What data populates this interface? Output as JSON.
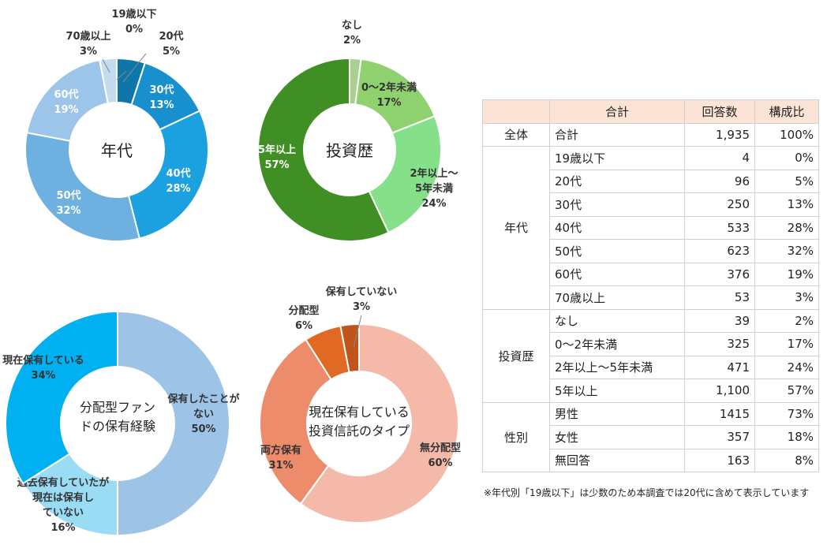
{
  "chart_data": [
    {
      "type": "pie",
      "title": "年代",
      "slices": [
        {
          "label": "19歳以下",
          "value": 0,
          "value_label": "0%",
          "color": "#0b5b86"
        },
        {
          "label": "20代",
          "value": 5,
          "value_label": "5%",
          "color": "#0e76a8"
        },
        {
          "label": "30代",
          "value": 13,
          "value_label": "13%",
          "color": "#1790cd"
        },
        {
          "label": "40代",
          "value": 28,
          "value_label": "28%",
          "color": "#1ba1df"
        },
        {
          "label": "50代",
          "value": 32,
          "value_label": "32%",
          "color": "#6eb0e0"
        },
        {
          "label": "60代",
          "value": 19,
          "value_label": "19%",
          "color": "#9dc5ea"
        },
        {
          "label": "70歳以上",
          "value": 3,
          "value_label": "3%",
          "color": "#c4dbf0"
        }
      ]
    },
    {
      "type": "pie",
      "title": "投資歴",
      "slices": [
        {
          "label": "なし",
          "value": 2,
          "value_label": "2%",
          "color": "#a9d08e"
        },
        {
          "label": "0～2年未満",
          "value": 17,
          "value_label": "17%",
          "color": "#8fd06f"
        },
        {
          "label": "2年以上～5年未満",
          "value": 24,
          "value_label": "24%",
          "color": "#86e08a"
        },
        {
          "label": "5年以上",
          "value": 57,
          "value_label": "57%",
          "color": "#3f8f24"
        }
      ]
    },
    {
      "type": "pie",
      "title": "分配型ファンドの保有経験",
      "slices": [
        {
          "label": "保有したことがない",
          "value": 50,
          "value_label": "50%",
          "color": "#9dc3e6"
        },
        {
          "label": "過去保有していたが現在は保有していない",
          "value": 16,
          "value_label": "16%",
          "color": "#9bdcf5"
        },
        {
          "label": "現在保有している",
          "value": 34,
          "value_label": "34%",
          "color": "#00b0f0"
        }
      ]
    },
    {
      "type": "pie",
      "title": "現在保有している投資信託のタイプ",
      "slices": [
        {
          "label": "無分配型",
          "value": 60,
          "value_label": "60%",
          "color": "#f4b9a8"
        },
        {
          "label": "両方保有",
          "value": 31,
          "value_label": "31%",
          "color": "#ec8c6a"
        },
        {
          "label": "分配型",
          "value": 6,
          "value_label": "6%",
          "color": "#e06a23"
        },
        {
          "label": "保有していない",
          "value": 3,
          "value_label": "3%",
          "color": "#c0541a"
        }
      ]
    },
    {
      "type": "table",
      "headers": [
        "",
        "合計",
        "回答数",
        "構成比"
      ],
      "groups": [
        {
          "name": "全体",
          "rows": [
            [
              "合計",
              "1,935",
              "100%"
            ]
          ]
        },
        {
          "name": "年代",
          "rows": [
            [
              "19歳以下",
              "4",
              "0%"
            ],
            [
              "20代",
              "96",
              "5%"
            ],
            [
              "30代",
              "250",
              "13%"
            ],
            [
              "40代",
              "533",
              "28%"
            ],
            [
              "50代",
              "623",
              "32%"
            ],
            [
              "60代",
              "376",
              "19%"
            ],
            [
              "70歳以上",
              "53",
              "3%"
            ]
          ]
        },
        {
          "name": "投資歴",
          "rows": [
            [
              "なし",
              "39",
              "2%"
            ],
            [
              "0～2年未満",
              "325",
              "17%"
            ],
            [
              "2年以上～5年未満",
              "471",
              "24%"
            ],
            [
              "5年以上",
              "1,100",
              "57%"
            ]
          ]
        },
        {
          "name": "性別",
          "rows": [
            [
              "男性",
              "1415",
              "73%"
            ],
            [
              "女性",
              "357",
              "18%"
            ],
            [
              "無回答",
              "163",
              "8%"
            ]
          ]
        }
      ]
    }
  ],
  "note": "※年代別「19歳以下」は少数のため本調査では20代に含めて表示しています"
}
